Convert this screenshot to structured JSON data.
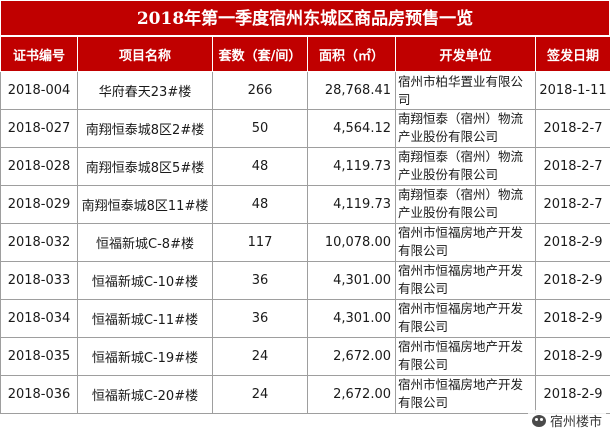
{
  "title": "2018年第一季度宿州东城区商品房预售一览",
  "headers": [
    "证书编号",
    "项目名称",
    "套数（套/间）",
    "面积（㎡）",
    "开发单位",
    "签发日期"
  ],
  "rows": [
    {
      "cert": "2018-004",
      "project": "华府春天23#楼",
      "units": "266",
      "area": "28,768.41",
      "developer": "宿州市柏华置业有限公司",
      "date": "2018-1-11"
    },
    {
      "cert": "2018-027",
      "project": "南翔恒泰城8区2#楼",
      "units": "50",
      "area": "4,564.12",
      "developer": "南翔恒泰（宿州）物流产业股份有限公司",
      "date": "2018-2-7"
    },
    {
      "cert": "2018-028",
      "project": "南翔恒泰城8区5#楼",
      "units": "48",
      "area": "4,119.73",
      "developer": "南翔恒泰（宿州）物流产业股份有限公司",
      "date": "2018-2-7"
    },
    {
      "cert": "2018-029",
      "project": "南翔恒泰城8区11#楼",
      "units": "48",
      "area": "4,119.73",
      "developer": "南翔恒泰（宿州）物流产业股份有限公司",
      "date": "2018-2-7"
    },
    {
      "cert": "2018-032",
      "project": "恒福新城C-8#楼",
      "units": "117",
      "area": "10,078.00",
      "developer": "宿州市恒福房地产开发有限公司",
      "date": "2018-2-9"
    },
    {
      "cert": "2018-033",
      "project": "恒福新城C-10#楼",
      "units": "36",
      "area": "4,301.00",
      "developer": "宿州市恒福房地产开发有限公司",
      "date": "2018-2-9"
    },
    {
      "cert": "2018-034",
      "project": "恒福新城C-11#楼",
      "units": "36",
      "area": "4,301.00",
      "developer": "宿州市恒福房地产开发有限公司",
      "date": "2018-2-9"
    },
    {
      "cert": "2018-035",
      "project": "恒福新城C-19#楼",
      "units": "24",
      "area": "2,672.00",
      "developer": "宿州市恒福房地产开发有限公司",
      "date": "2018-2-9"
    },
    {
      "cert": "2018-036",
      "project": "恒福新城C-20#楼",
      "units": "24",
      "area": "2,672.00",
      "developer": "宿州市恒福房地产开发有限公司",
      "date": "2018-2-9"
    }
  ],
  "watermark": "宿州楼市",
  "colors": {
    "header_bg": "#c00000",
    "header_text": "#ffffff",
    "border": "#9e9e9e"
  }
}
